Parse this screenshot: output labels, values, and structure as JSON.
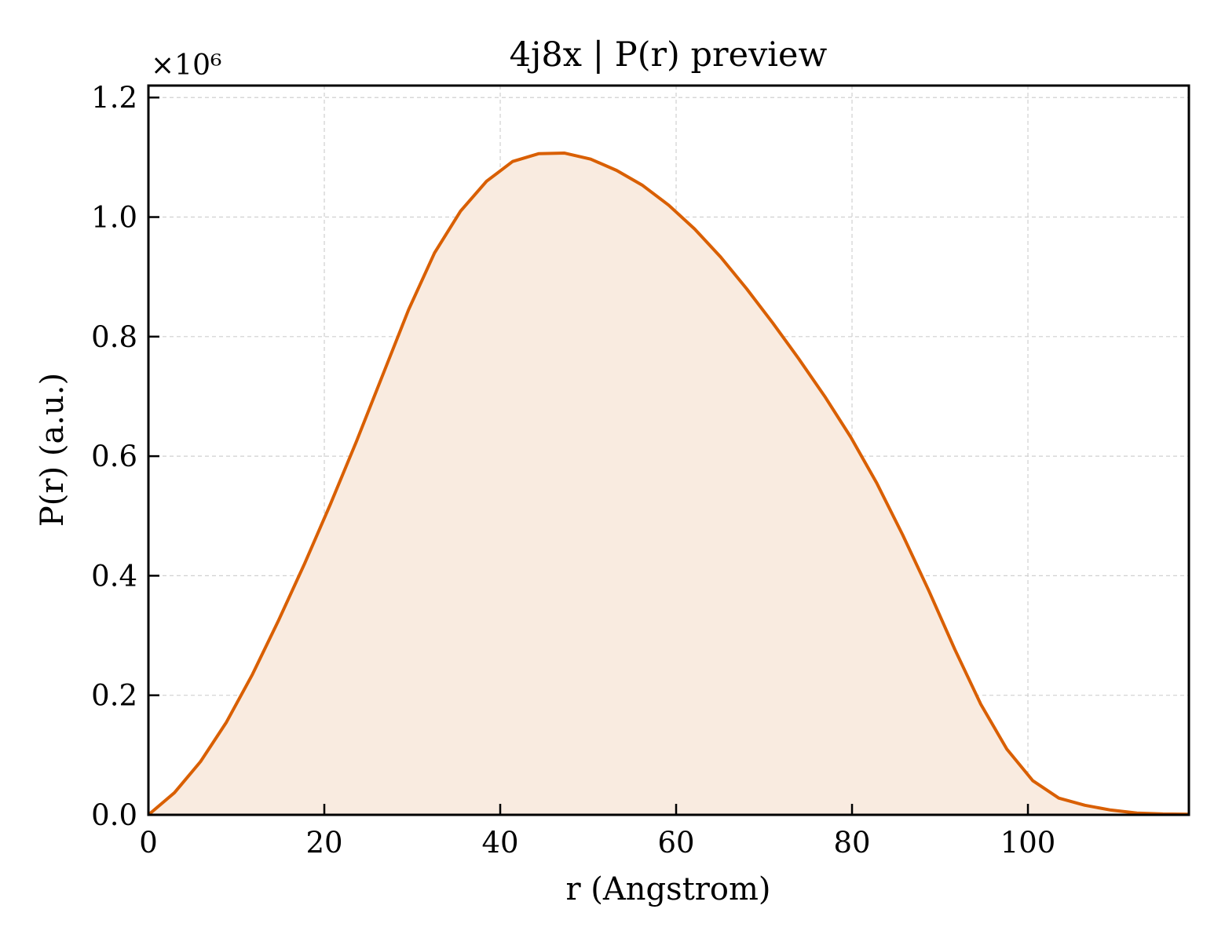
{
  "chart_data": {
    "type": "area",
    "title": "4j8x | P(r) preview",
    "xlabel": "r (Angstrom)",
    "ylabel": "P(r) (a.u.)",
    "y_multiplier_label": "×10⁶",
    "xlim": [
      0,
      118.3
    ],
    "ylim": [
      0,
      1.22
    ],
    "y_scale_note": "values in units of 1e6",
    "x_ticks": [
      0,
      20,
      40,
      60,
      80,
      100
    ],
    "y_ticks": [
      0.0,
      0.2,
      0.4,
      0.6,
      0.8,
      1.0,
      1.2
    ],
    "grid": true,
    "legend": "none",
    "colors": {
      "line": "#d95f02",
      "fill": "#f9ebe0"
    },
    "series": [
      {
        "x": [
          0,
          2.96,
          5.92,
          8.87,
          11.83,
          14.79,
          17.75,
          20.7,
          23.66,
          26.62,
          29.58,
          32.53,
          35.49,
          38.45,
          41.41,
          44.36,
          47.32,
          50.28,
          53.24,
          56.19,
          59.15,
          62.11,
          65.07,
          68.02,
          70.98,
          73.94,
          76.9,
          79.85,
          82.81,
          85.77,
          88.73,
          91.68,
          94.64,
          97.6,
          100.56,
          103.51,
          106.47,
          109.43,
          112.39,
          115.34,
          118.3
        ],
        "values": [
          0.0,
          0.037,
          0.089,
          0.155,
          0.235,
          0.325,
          0.42,
          0.52,
          0.625,
          0.735,
          0.845,
          0.94,
          1.01,
          1.06,
          1.093,
          1.106,
          1.107,
          1.097,
          1.078,
          1.053,
          1.02,
          0.98,
          0.933,
          0.88,
          0.823,
          0.763,
          0.7,
          0.632,
          0.555,
          0.468,
          0.375,
          0.277,
          0.185,
          0.11,
          0.057,
          0.028,
          0.016,
          0.008,
          0.003,
          0.0015,
          0.001
        ]
      }
    ]
  }
}
